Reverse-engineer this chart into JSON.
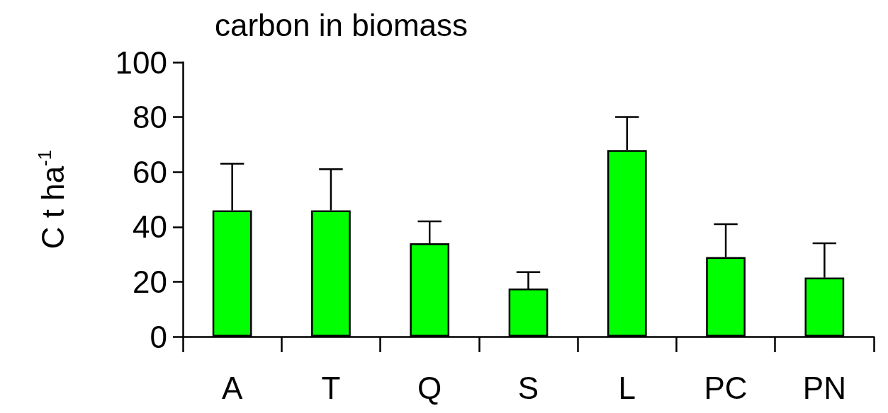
{
  "chart_data": {
    "type": "bar",
    "title": "carbon in biomass",
    "ylabel": "C t ha$^{-1}$",
    "categories": [
      "A",
      "T",
      "Q",
      "S",
      "L",
      "PC",
      "PN"
    ],
    "values": [
      46,
      46,
      34,
      17.5,
      68,
      29,
      21.5
    ],
    "errors": [
      [
        46,
        63
      ],
      [
        46,
        61
      ],
      [
        34,
        42
      ],
      [
        17.5,
        23.5
      ],
      [
        68,
        80
      ],
      [
        29,
        41
      ],
      [
        21.5,
        34
      ]
    ],
    "color": "#00ff00",
    "ylim": [
      0,
      100
    ],
    "yticks": [
      0,
      20,
      40,
      60,
      80,
      100
    ],
    "grid": false
  }
}
